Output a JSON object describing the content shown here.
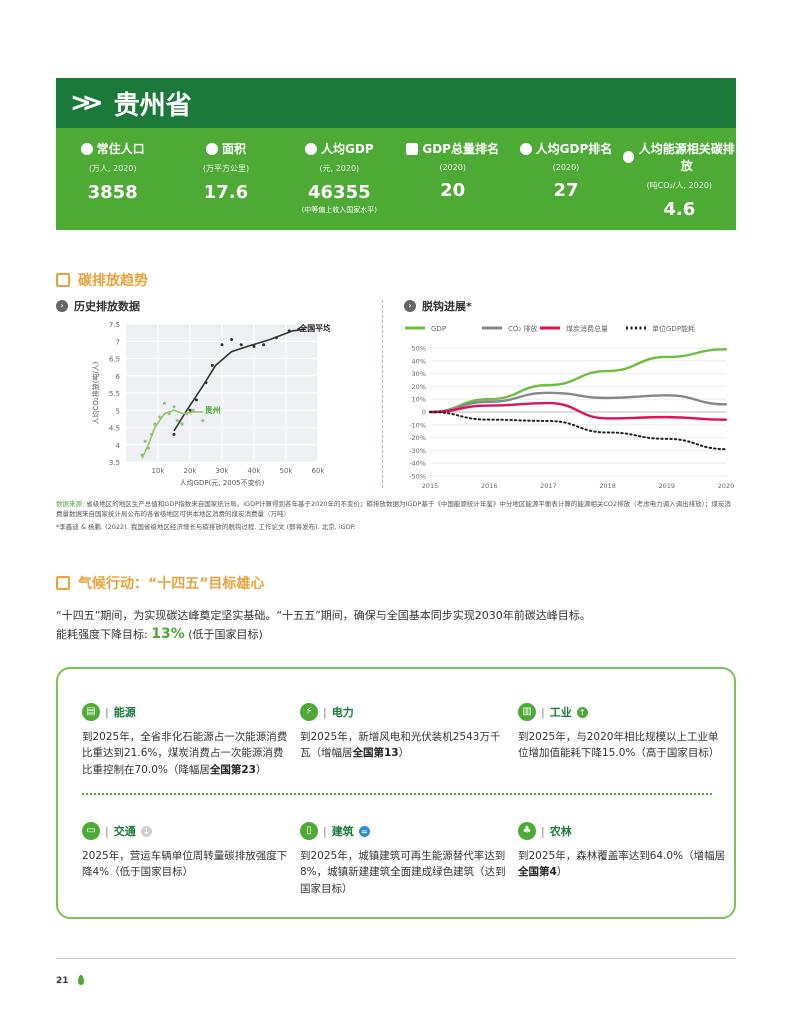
{
  "header": {
    "title": "贵州省"
  },
  "stats": [
    {
      "label": "常住人口",
      "unit": "(万人, 2020)",
      "value": "3858",
      "note": ""
    },
    {
      "label": "面积",
      "unit": "(万平方公里)",
      "value": "17.6",
      "note": ""
    },
    {
      "label": "人均GDP",
      "unit": "(元, 2020)",
      "value": "46355",
      "note": "(中等偏上收入国家水平)"
    },
    {
      "label": "GDP总量排名",
      "unit": "(2020)",
      "value": "20",
      "note": ""
    },
    {
      "label": "人均GDP排名",
      "unit": "(2020)",
      "value": "27",
      "note": ""
    },
    {
      "label": "人均能源相关碳排放",
      "unit": "(吨CO₂/人, 2020)",
      "value": "4.6",
      "note": ""
    }
  ],
  "emission": {
    "section_title": "碳排放趋势",
    "history_title": "历史排放数据",
    "decoupling_title": "脱钩进展*"
  },
  "chart_data": [
    {
      "type": "scatter",
      "title": "历史排放数据",
      "xlabel": "人均GDP(元, 2005不变价)",
      "ylabel": "人均CO₂排放(吨/人)",
      "xlim": [
        0,
        60000
      ],
      "ylim": [
        3.5,
        7.5
      ],
      "x_ticks": [
        "10k",
        "20k",
        "30k",
        "40k",
        "50k",
        "60k"
      ],
      "y_ticks": [
        "3.5",
        "4",
        "4.5",
        "5",
        "5.5",
        "6",
        "6.5",
        "7",
        "7.5"
      ],
      "series": [
        {
          "name": "全国平均",
          "color": "#333333",
          "points": [
            [
              15000,
              4.3
            ],
            [
              17500,
              4.6
            ],
            [
              20000,
              5.0
            ],
            [
              22000,
              5.3
            ],
            [
              25000,
              5.8
            ],
            [
              27000,
              6.3
            ],
            [
              30000,
              6.9
            ],
            [
              33000,
              7.05
            ],
            [
              36000,
              6.9
            ],
            [
              40000,
              6.85
            ],
            [
              43000,
              6.9
            ],
            [
              47000,
              7.1
            ],
            [
              51000,
              7.3
            ],
            [
              54000,
              7.35
            ]
          ],
          "line": [
            [
              15000,
              4.4
            ],
            [
              19000,
              5.0
            ],
            [
              24000,
              5.7
            ],
            [
              28000,
              6.3
            ],
            [
              33000,
              6.7
            ],
            [
              38000,
              6.85
            ],
            [
              45000,
              7.05
            ],
            [
              52000,
              7.3
            ],
            [
              56000,
              7.35
            ]
          ]
        },
        {
          "name": "贵州",
          "color": "#8ec86a",
          "points": [
            [
              5000,
              3.7
            ],
            [
              6000,
              4.1
            ],
            [
              7000,
              3.9
            ],
            [
              8000,
              4.3
            ],
            [
              9000,
              4.6
            ],
            [
              10500,
              4.8
            ],
            [
              12000,
              5.2
            ],
            [
              13500,
              4.9
            ],
            [
              15000,
              5.1
            ],
            [
              16000,
              4.7
            ],
            [
              17500,
              4.6
            ],
            [
              19000,
              4.9
            ],
            [
              21000,
              5.0
            ],
            [
              24000,
              4.7
            ]
          ],
          "line": [
            [
              5000,
              3.6
            ],
            [
              7000,
              4.0
            ],
            [
              9000,
              4.5
            ],
            [
              12000,
              4.9
            ],
            [
              15000,
              5.0
            ],
            [
              18000,
              4.9
            ],
            [
              21000,
              4.95
            ],
            [
              24000,
              4.95
            ]
          ]
        }
      ]
    },
    {
      "type": "line",
      "title": "脱钩进展*",
      "x": [
        2015,
        2016,
        2017,
        2018,
        2019,
        2020
      ],
      "ylim": [
        -50,
        50
      ],
      "y_ticks": [
        "50%",
        "40%",
        "30%",
        "20%",
        "10%",
        "0",
        "-10%",
        "-20%",
        "-30%",
        "-40%",
        "-50%"
      ],
      "series": [
        {
          "name": "GDP",
          "color": "#6cbf3f",
          "values": [
            0,
            10,
            21,
            32,
            43,
            49
          ]
        },
        {
          "name": "CO₂ 排放",
          "color": "#888888",
          "values": [
            0,
            8,
            15,
            11,
            13,
            6
          ]
        },
        {
          "name": "煤炭消费总量",
          "color": "#e0105a",
          "values": [
            0,
            5,
            7,
            -5,
            -4,
            -6
          ]
        },
        {
          "name": "单位GDP能耗",
          "color": "#222222",
          "values": [
            0,
            -6,
            -7,
            -16,
            -21,
            -29
          ]
        }
      ]
    }
  ],
  "source": {
    "label": "数据来源:",
    "text": "省级地区的地区生产总值和GDP指数来自国家统计局。iGDP计算得到各年基于2020年的不变价；碳排放数据为iGDP基于《中国能源统计年鉴》中分地区能源平衡表计算的能源相关CO2排放（考虑电力调入调出排放）；煤炭消费量数据来自国家统计局公布的各省级地区可供本地区消费的煤炭消费量（万吨）",
    "footnote": "*李鑫迪 & 杨鹏. (2022). 我国省级地区经济增长与碳排放的脱钩过程. 工作论文 (即将发布). 北京, iGDP."
  },
  "climate": {
    "section_title": "气候行动：“十四五”目标雄心",
    "paragraph": "“十四五”期间，为实现碳达峰奠定坚实基础。“十五五”期间，确保与全国基本同步实现2030年前碳达峰目标。",
    "intensity_label": "能耗强度下降目标:",
    "intensity_value": "13%",
    "intensity_note": "(低于国家目标)"
  },
  "sectors": [
    {
      "name": "能源",
      "icon": "energy-icon",
      "text_a": "到2025年，全省非化石能源占一次能源消费比重达到21.6%，煤炭消费占一次能源消费比重控制在70.0%（降幅居",
      "bold": "全国第23",
      "text_b": "）"
    },
    {
      "name": "电力",
      "icon": "power-icon",
      "text_a": "到2025年，新增风电和光伏装机2543万千瓦（增幅居",
      "bold": "全国第13",
      "text_b": "）"
    },
    {
      "name": "工业",
      "icon": "industry-icon",
      "mark": "↑",
      "mark_color": "#4caa35",
      "text_a": "到2025年，与2020年相比规模以上工业单位增加值能耗下降15.0%（高于国家目标）",
      "bold": "",
      "text_b": ""
    },
    {
      "name": "交通",
      "icon": "transport-icon",
      "mark": "↓",
      "mark_color": "#cfcfcf",
      "text_a": "2025年，营运车辆单位周转量碳排放强度下降4%（低于国家目标）",
      "bold": "",
      "text_b": ""
    },
    {
      "name": "建筑",
      "icon": "building-icon",
      "mark": "=",
      "mark_color": "#2a8fd4",
      "text_a": "到2025年，城镇建筑可再生能源替代率达到8%，城镇新建建筑全面建成绿色建筑（达到国家目标）",
      "bold": "",
      "text_b": ""
    },
    {
      "name": "农林",
      "icon": "forest-icon",
      "text_a": "到2025年，森林覆盖率达到64.0%（增幅居",
      "bold": "全国第4",
      "text_b": "）"
    }
  ],
  "footer": {
    "page_number": "21"
  }
}
